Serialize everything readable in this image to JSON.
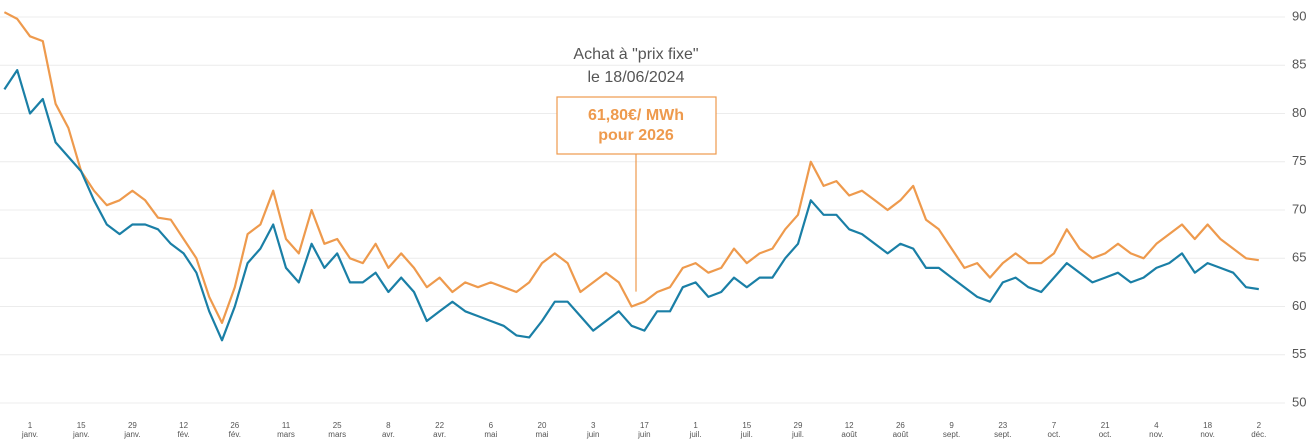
{
  "chart_data": {
    "type": "line",
    "annotation": {
      "text": [
        "Achat à \"prix fixe\"",
        "le 18/06/2024"
      ],
      "box": [
        "61,80€/ MWh",
        "pour 2026"
      ],
      "color": "#ee9a4d"
    },
    "categories": [
      null,
      null,
      "1\njanv.",
      null,
      null,
      null,
      "15\njanv.",
      null,
      null,
      null,
      "29\njanv.",
      null,
      null,
      null,
      "12\nfév.",
      null,
      null,
      null,
      "26\nfév.",
      null,
      null,
      null,
      "11\nmars",
      null,
      null,
      null,
      "25\nmars",
      null,
      null,
      null,
      "8\navr.",
      null,
      null,
      null,
      "22\navr.",
      null,
      null,
      null,
      "6\nmai",
      null,
      null,
      null,
      "20\nmai",
      null,
      null,
      null,
      "3\njuin",
      null,
      null,
      null,
      "17\njuin",
      null,
      null,
      null,
      "1\njuil.",
      null,
      null,
      null,
      "15\njuil.",
      null,
      null,
      null,
      "29\njuil.",
      null,
      null,
      null,
      "12\naoût",
      null,
      null,
      null,
      "26\naoût",
      null,
      null,
      null,
      "9\nsept.",
      null,
      null,
      null,
      "23\nsept.",
      null,
      null,
      null,
      "7\noct.",
      null,
      null,
      null,
      "21\noct.",
      null,
      null,
      null,
      "4\nnov.",
      null,
      null,
      null,
      "18\nnov.",
      null,
      null,
      null,
      "2\ndéc."
    ],
    "series": [
      {
        "color": "#ee9a4d",
        "values": [
          90.5,
          89.8,
          88,
          87.5,
          81,
          78.5,
          74,
          72,
          70.5,
          71,
          72,
          71,
          69.2,
          69,
          67,
          65,
          61,
          58.3,
          62,
          67.5,
          68.5,
          72,
          67,
          65.5,
          70,
          66.5,
          67,
          65,
          64.5,
          66.5,
          64,
          65.5,
          64,
          62,
          63,
          61.5,
          62.5,
          62,
          62.5,
          62,
          61.5,
          62.5,
          64.5,
          65.5,
          64.5,
          61.5,
          62.5,
          63.5,
          62.5,
          60,
          60.5,
          61.5,
          62,
          64,
          64.5,
          63.5,
          64,
          66,
          64.5,
          65.5,
          66,
          68,
          69.5,
          75,
          72.5,
          73,
          71.5,
          72,
          71,
          70,
          71,
          72.5,
          69,
          68,
          66,
          64,
          64.5,
          63,
          64.5,
          65.5,
          64.5,
          64.5,
          65.5,
          68,
          66,
          65,
          65.5,
          66.5,
          65.5,
          65,
          66.5,
          67.5,
          68.5,
          67,
          68.5,
          67,
          66,
          65,
          64.8
        ]
      },
      {
        "color": "#1a7fa6",
        "values": [
          82.5,
          84.5,
          80,
          81.5,
          77,
          75.5,
          74,
          71,
          68.5,
          67.5,
          68.5,
          68.5,
          68,
          66.5,
          65.5,
          63.5,
          59.5,
          56.5,
          60,
          64.5,
          66,
          68.5,
          64,
          62.5,
          66.5,
          64,
          65.5,
          62.5,
          62.5,
          63.5,
          61.5,
          63,
          61.5,
          58.5,
          59.5,
          60.5,
          59.5,
          59,
          58.5,
          58,
          57,
          56.8,
          58.5,
          60.5,
          60.5,
          59,
          57.5,
          58.5,
          59.5,
          58,
          57.5,
          59.5,
          59.5,
          62,
          62.5,
          61,
          61.5,
          63,
          62,
          63,
          63,
          65,
          66.5,
          71,
          69.5,
          69.5,
          68,
          67.5,
          66.5,
          65.5,
          66.5,
          66,
          64,
          64,
          63,
          62,
          61,
          60.5,
          62.5,
          63,
          62,
          61.5,
          63,
          64.5,
          63.5,
          62.5,
          63,
          63.5,
          62.5,
          63,
          64,
          64.5,
          65.5,
          63.5,
          64.5,
          64,
          63.5,
          62,
          61.8
        ]
      }
    ],
    "ylim": [
      50,
      90
    ],
    "yticks": [
      50,
      55,
      60,
      65,
      70,
      75,
      80,
      85,
      90
    ],
    "grid": true
  }
}
